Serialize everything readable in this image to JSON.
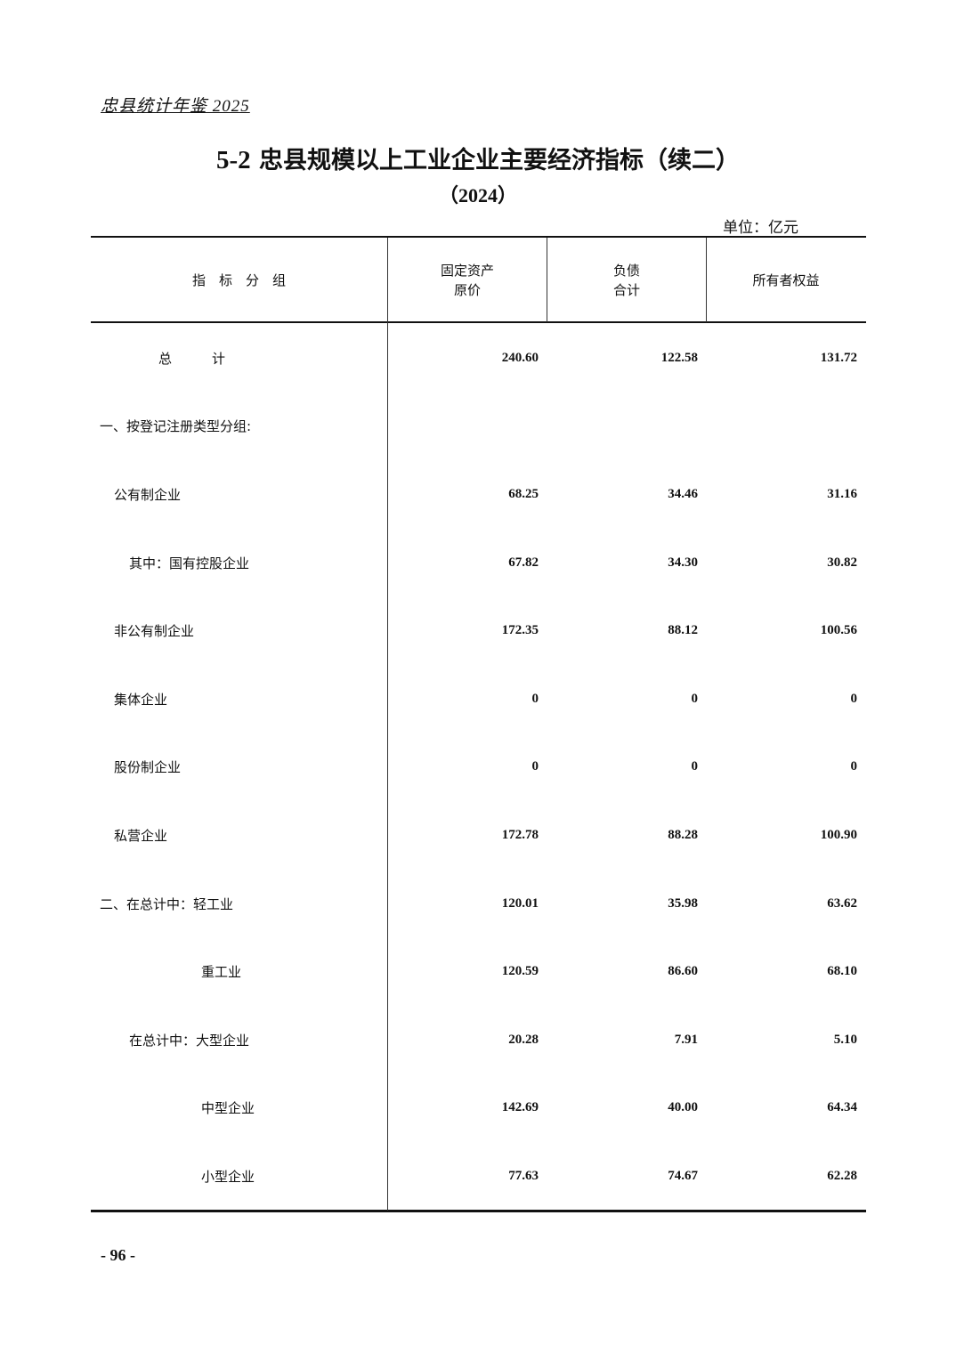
{
  "running_header": "忠县统计年鉴 2025",
  "title": {
    "number": "5-2",
    "text": "忠县规模以上工业企业主要经济指标（续二）"
  },
  "year": "（2024）",
  "unit": "单位：亿元",
  "columns": [
    {
      "line1": "指　标　分　组",
      "line2": ""
    },
    {
      "line1": "固定资产",
      "line2": "原价"
    },
    {
      "line1": "负债",
      "line2": "合计"
    },
    {
      "line1": "所有者权益",
      "line2": ""
    }
  ],
  "rows": [
    {
      "label": "总　　　计",
      "indent": 0,
      "values": [
        "240.60",
        "122.58",
        "131.72"
      ]
    },
    {
      "label": "一、按登记注册类型分组:",
      "indent": 1,
      "values": [
        "",
        "",
        ""
      ]
    },
    {
      "label": "公有制企业",
      "indent": 2,
      "values": [
        "68.25",
        "34.46",
        "31.16"
      ]
    },
    {
      "label": "其中：国有控股企业",
      "indent": 3,
      "values": [
        "67.82",
        "34.30",
        "30.82"
      ]
    },
    {
      "label": "非公有制企业",
      "indent": 2,
      "values": [
        "172.35",
        "88.12",
        "100.56"
      ]
    },
    {
      "label": "集体企业",
      "indent": 2,
      "values": [
        "0",
        "0",
        "0"
      ]
    },
    {
      "label": "股份制企业",
      "indent": 2,
      "values": [
        "0",
        "0",
        "0"
      ]
    },
    {
      "label": "私营企业",
      "indent": 2,
      "values": [
        "172.78",
        "88.28",
        "100.90"
      ]
    },
    {
      "label": "二、在总计中：轻工业",
      "indent": 1,
      "values": [
        "120.01",
        "35.98",
        "63.62"
      ]
    },
    {
      "label": "重工业",
      "indent": 4,
      "values": [
        "120.59",
        "86.60",
        "68.10"
      ]
    },
    {
      "label": "在总计中：大型企业",
      "indent": 3,
      "values": [
        "20.28",
        "7.91",
        "5.10"
      ]
    },
    {
      "label": "中型企业",
      "indent": 4,
      "values": [
        "142.69",
        "40.00",
        "64.34"
      ]
    },
    {
      "label": "小型企业",
      "indent": 4,
      "values": [
        "77.63",
        "74.67",
        "62.28"
      ]
    }
  ],
  "page_number": "- 96 -"
}
